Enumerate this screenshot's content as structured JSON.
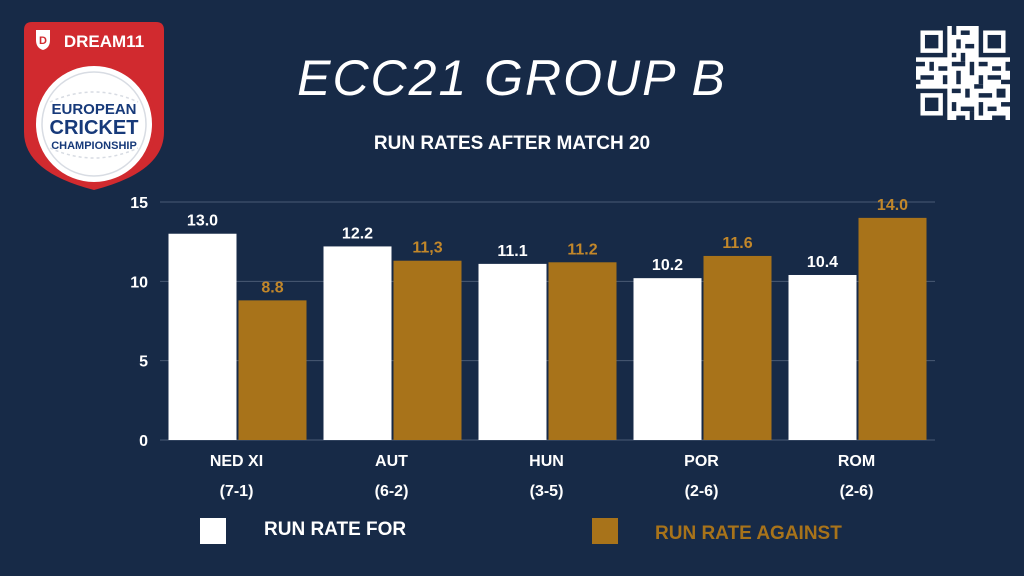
{
  "header": {
    "title": "ECC21 GROUP B",
    "subtitle": "RUN RATES AFTER MATCH 20"
  },
  "logo": {
    "brand": "DREAM11",
    "line1": "EUROPEAN",
    "line2": "CRICKET",
    "line3": "CHAMPIONSHIP",
    "icon": "cricket-ball-icon"
  },
  "qr": {
    "icon": "qr-code-icon"
  },
  "colors": {
    "background": "#172a47",
    "for": "#ffffff",
    "against": "#a8731a",
    "against_label": "#c2872a",
    "grid": "#4a5a74",
    "logo_red": "#d12a2f"
  },
  "chart_data": {
    "type": "bar",
    "categories": [
      "NED XI",
      "AUT",
      "HUN",
      "POR",
      "ROM"
    ],
    "category_records": [
      "(7-1)",
      "(6-2)",
      "(3-5)",
      "(2-6)",
      "(2-6)"
    ],
    "series": [
      {
        "name": "RUN RATE FOR",
        "values": [
          13.0,
          12.2,
          11.1,
          10.2,
          10.4
        ],
        "labels": [
          "13.0",
          "12.2",
          "11.1",
          "10.2",
          "10.4"
        ]
      },
      {
        "name": "RUN RATE AGAINST",
        "values": [
          8.8,
          11.3,
          11.2,
          11.6,
          14.0
        ],
        "labels": [
          "8.8",
          "11,3",
          "11.2",
          "11.6",
          "14.0"
        ]
      }
    ],
    "yticks": [
      "0",
      "5",
      "10",
      "15"
    ],
    "ylim": [
      0,
      15
    ],
    "grid": true,
    "legend_position": "bottom"
  }
}
